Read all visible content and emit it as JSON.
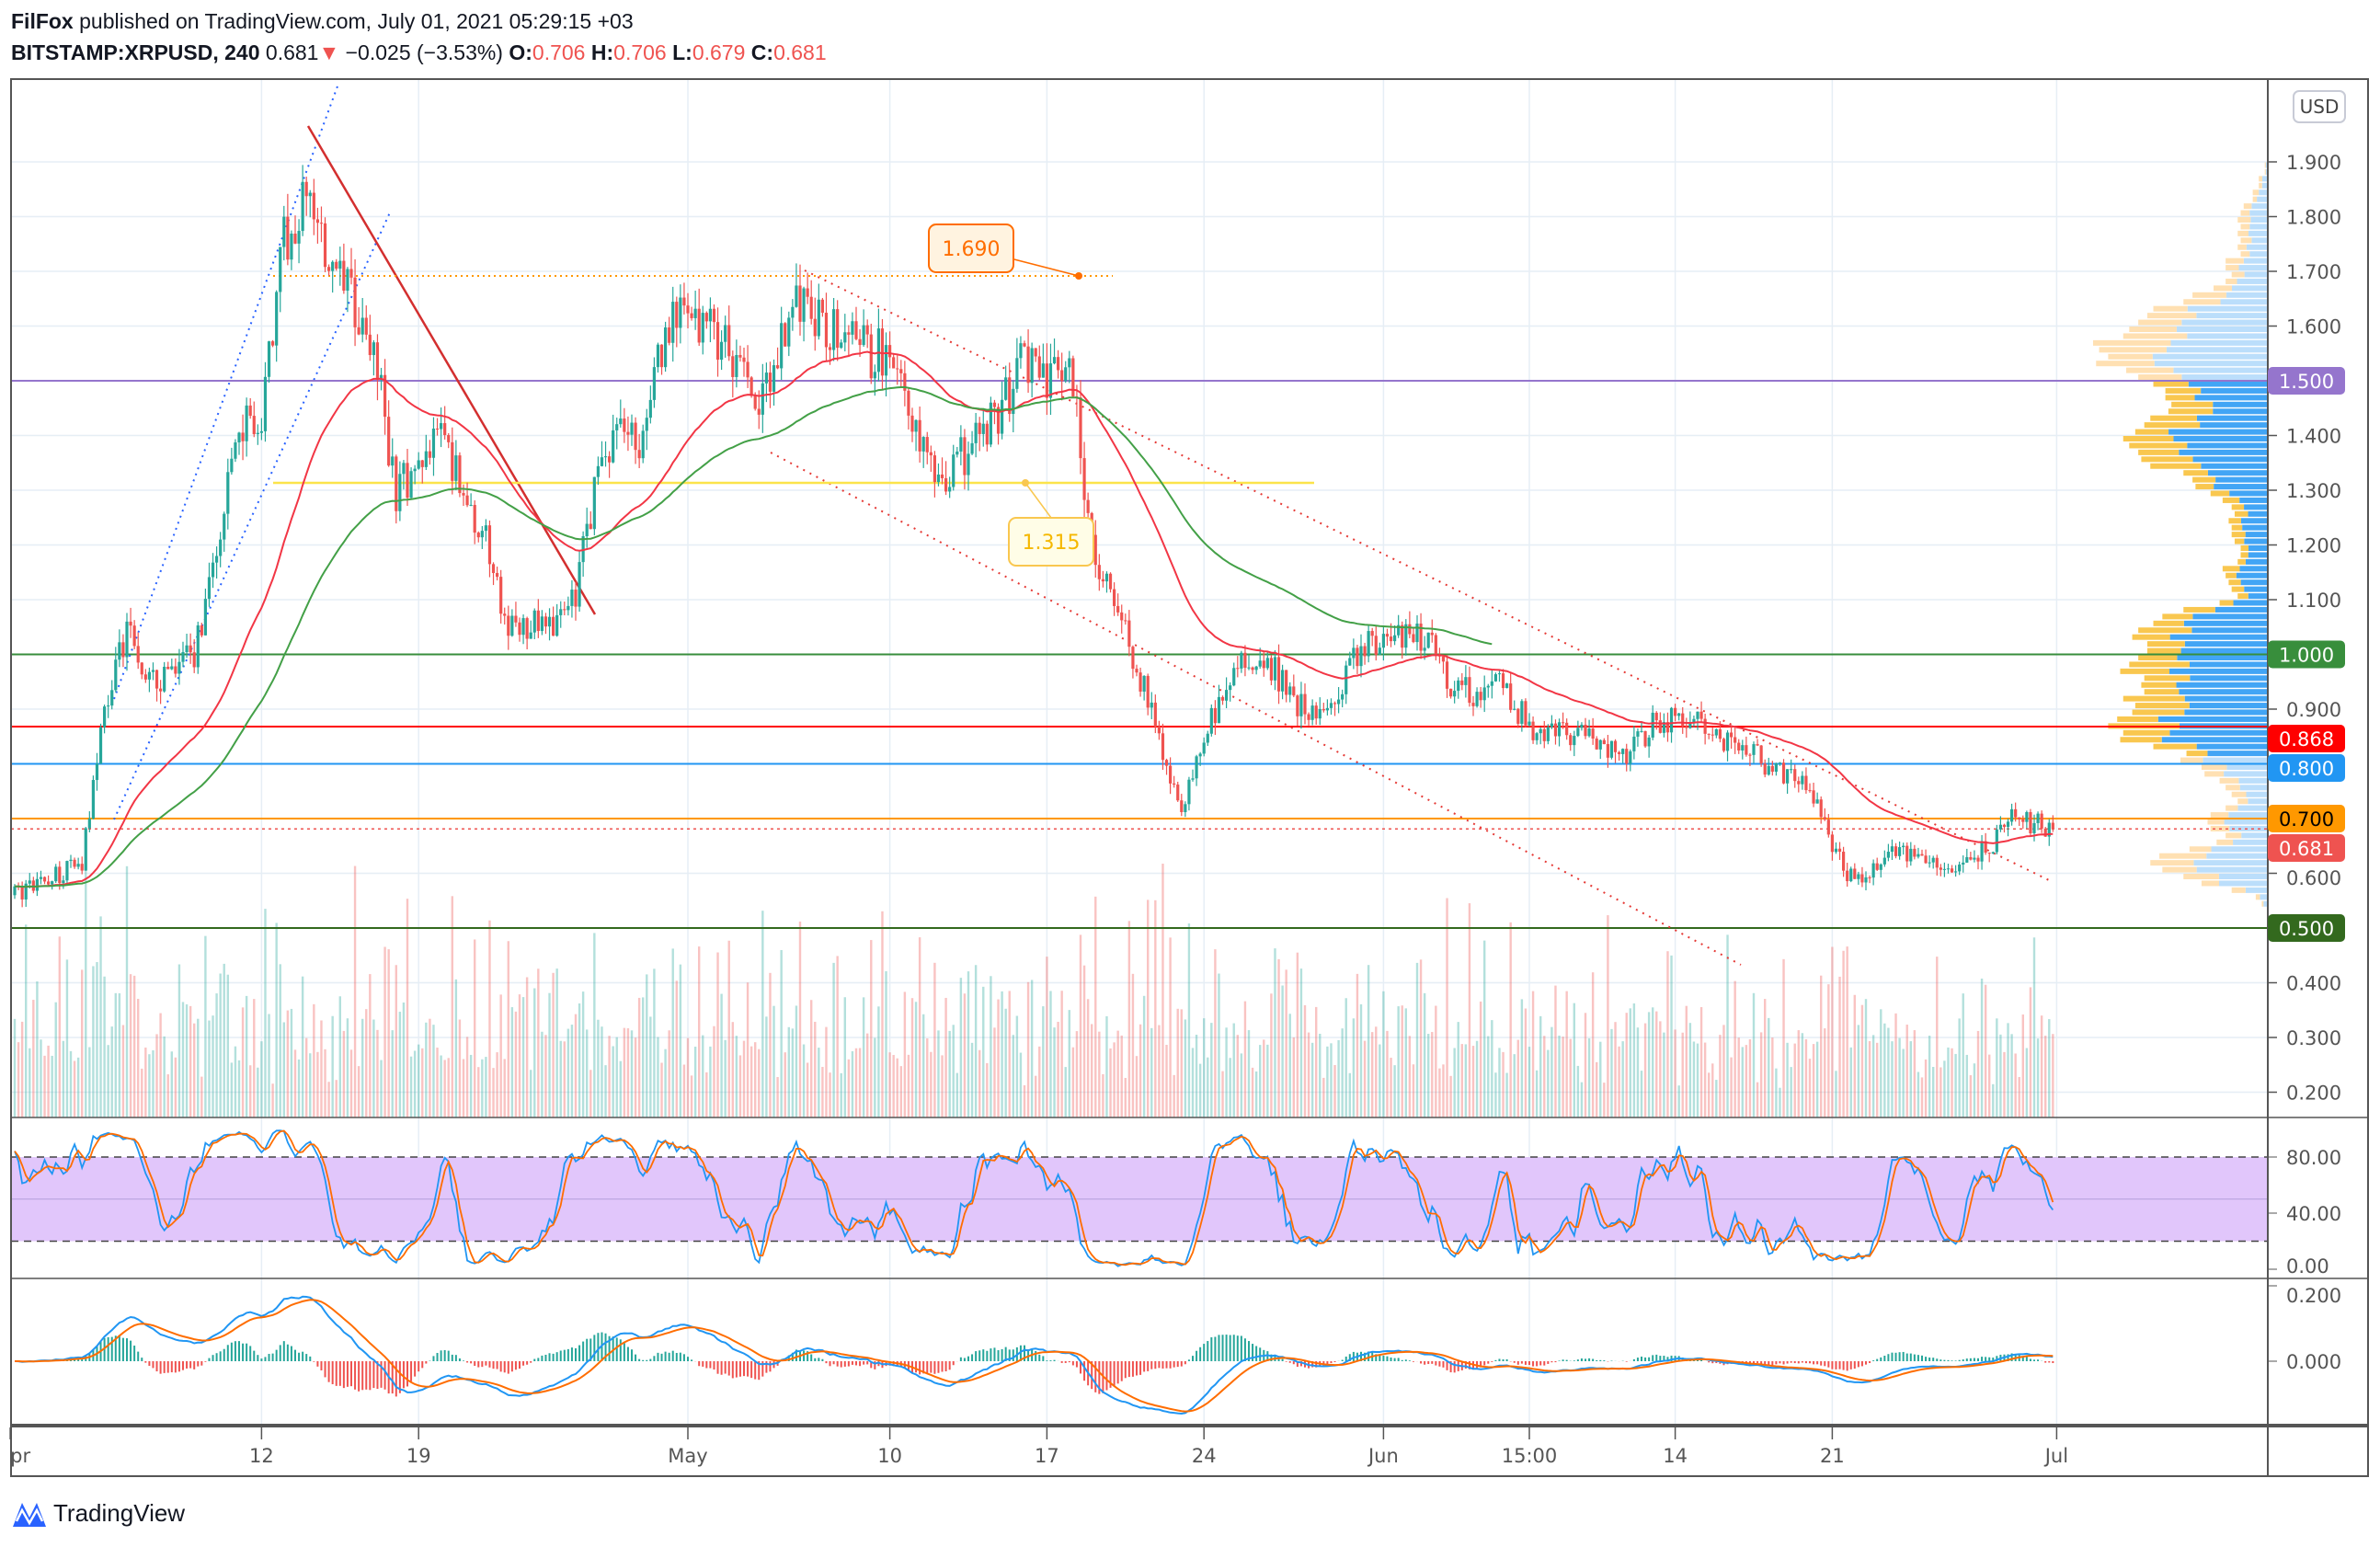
{
  "header": {
    "author": "FilFox",
    "published_text": "published on TradingView.com, July 01, 2021 05:29:15 +03",
    "symbol": "BITSTAMP:XRPUSD, 240",
    "last": "0.681",
    "change": "−0.025 (−3.53%)",
    "o_label": "O:",
    "o": "0.706",
    "h_label": "H:",
    "h": "0.706",
    "l_label": "L:",
    "l": "0.679",
    "c_label": "C:",
    "c": "0.681"
  },
  "currency_badge": "USD",
  "brand": "TradingView",
  "colors": {
    "up": "#26a69a",
    "down": "#ef5350",
    "ema_fast": "#f23645",
    "ema_slow": "#43a047",
    "stoch_k": "#2196f3",
    "stoch_d": "#ff6d00",
    "macd": "#2196f3",
    "signal": "#ff6d00"
  },
  "chart_data": {
    "type": "candlestick",
    "title": "BITSTAMP:XRPUSD, 240",
    "start_date": "2021-04-01",
    "daily_closes": [
      0.56,
      0.58,
      0.6,
      0.62,
      0.9,
      1.05,
      0.95,
      0.97,
      1.0,
      1.2,
      1.4,
      1.45,
      1.75,
      1.85,
      1.7,
      1.65,
      1.55,
      1.3,
      1.35,
      1.4,
      1.3,
      1.2,
      1.05,
      1.05,
      1.05,
      1.1,
      1.35,
      1.4,
      1.38,
      1.6,
      1.62,
      1.6,
      1.55,
      1.45,
      1.55,
      1.65,
      1.6,
      1.58,
      1.55,
      1.55,
      1.45,
      1.3,
      1.35,
      1.4,
      1.45,
      1.55,
      1.5,
      1.55,
      1.2,
      1.1,
      0.98,
      0.85,
      0.7,
      0.85,
      0.95,
      1.0,
      0.98,
      0.92,
      0.88,
      0.92,
      1.02,
      1.02,
      1.03,
      1.04,
      0.95,
      0.93,
      0.95,
      0.9,
      0.85,
      0.86,
      0.85,
      0.83,
      0.82,
      0.87,
      0.88,
      0.88,
      0.85,
      0.84,
      0.8,
      0.78,
      0.76,
      0.65,
      0.58,
      0.62,
      0.64,
      0.62,
      0.61,
      0.63,
      0.65,
      0.7,
      0.69,
      0.681
    ],
    "price_ticks": [
      "1.900",
      "1.800",
      "1.700",
      "1.600",
      "1.400",
      "1.300",
      "1.200",
      "1.100",
      "0.900",
      "0.600",
      "0.400",
      "0.300",
      "0.200"
    ],
    "price_range": [
      0.15,
      2.0
    ],
    "time_ticks": [
      {
        "label": "pr",
        "day": -0.2
      },
      {
        "label": "12",
        "day": 11
      },
      {
        "label": "19",
        "day": 18
      },
      {
        "label": "May",
        "day": 30
      },
      {
        "label": "10",
        "day": 39
      },
      {
        "label": "17",
        "day": 46
      },
      {
        "label": "24",
        "day": 53
      },
      {
        "label": "Jun",
        "day": 61
      },
      {
        "label": "15:00",
        "day": 67.5
      },
      {
        "label": "14",
        "day": 74
      },
      {
        "label": "21",
        "day": 81
      },
      {
        "label": "Jul",
        "day": 91
      }
    ],
    "levels": [
      {
        "value": 1.5,
        "label": "1.500",
        "color": "#9575cd",
        "text": "#ffffff"
      },
      {
        "value": 1.0,
        "label": "1.000",
        "color": "#388e3c",
        "text": "#ffffff"
      },
      {
        "value": 0.868,
        "label": "0.868",
        "color": "#ff0000",
        "text": "#ffffff"
      },
      {
        "value": 0.8,
        "label": "0.800",
        "color": "#2196f3",
        "text": "#ffffff"
      },
      {
        "value": 0.7,
        "label": "0.700",
        "color": "#ff9800",
        "text": "#000000"
      },
      {
        "value": 0.681,
        "label": "0.681",
        "color": "#ef5350",
        "text": "#ffffff",
        "dotted": true
      },
      {
        "value": 0.5,
        "label": "0.500",
        "color": "#33691e",
        "text": "#ffffff"
      }
    ],
    "annotations": [
      {
        "label": "1.690",
        "value": 1.69,
        "color": "#ff6d00"
      },
      {
        "label": "1.315",
        "value": 1.315,
        "color": "#f9c74f"
      }
    ],
    "stoch_ticks": [
      "80.00",
      "40.00",
      "0.00"
    ],
    "stoch_band": [
      20,
      80
    ],
    "macd_ticks": [
      "0.200",
      "0.000"
    ]
  }
}
